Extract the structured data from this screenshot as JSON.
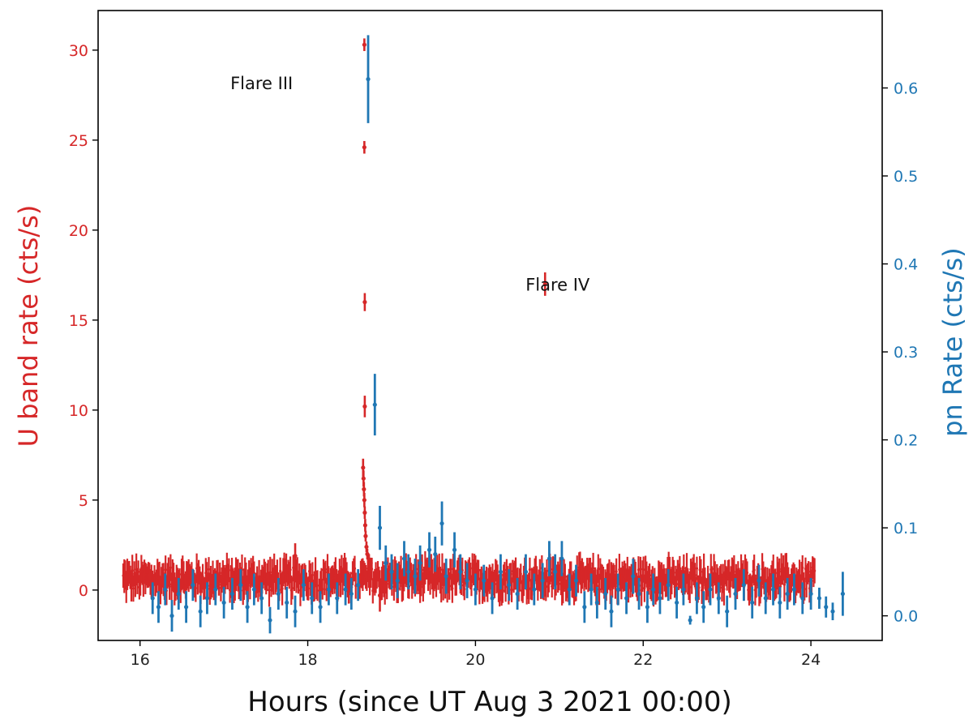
{
  "chart_data": {
    "type": "scatter",
    "title": "",
    "xlabel": "Hours (since UT Aug 3 2021 00:00)",
    "ylabel_left": "U band rate (cts/s)",
    "ylabel_right": "pn Rate (cts/s)",
    "xlim": [
      15.5,
      24.85
    ],
    "ylim_left": [
      -2.8,
      32.2
    ],
    "ylim_right": [
      -0.028,
      0.688
    ],
    "xticks": [
      16,
      18,
      20,
      22,
      24
    ],
    "yticks_left": [
      0,
      5,
      10,
      15,
      20,
      25,
      30
    ],
    "yticks_right": [
      0.0,
      0.1,
      0.2,
      0.3,
      0.4,
      0.5,
      0.6
    ],
    "grid": false,
    "colors": {
      "u_band": "#d62728",
      "pn": "#1f77b4"
    },
    "annotations": [
      {
        "text": "Flare III",
        "x": 17.45,
        "y_left": 28.2
      },
      {
        "text": "Flare IV",
        "x": 20.98,
        "y_left": 17.0
      }
    ],
    "series": [
      {
        "name": "",
        "axis": "left",
        "color": "#d62728",
        "dense_background": {
          "x_start": 15.8,
          "x_end": 24.05,
          "y_mean": 0.6,
          "y_scatter": 0.65,
          "err": 0.75,
          "step": 0.012,
          "gaps": [
            [
              18.12,
              18.14
            ],
            [
              18.58,
              18.62
            ]
          ]
        },
        "points": [
          {
            "x": 18.66,
            "y": 6.8,
            "err": 0.5
          },
          {
            "x": 18.665,
            "y": 6.2,
            "err": 0.45
          },
          {
            "x": 18.67,
            "y": 5.6,
            "err": 0.4
          },
          {
            "x": 18.675,
            "y": 5.0,
            "err": 0.4
          },
          {
            "x": 18.68,
            "y": 4.3,
            "err": 0.35
          },
          {
            "x": 18.685,
            "y": 3.6,
            "err": 0.35
          },
          {
            "x": 18.69,
            "y": 3.0,
            "err": 0.3
          },
          {
            "x": 18.7,
            "y": 2.4,
            "err": 0.3
          },
          {
            "x": 18.71,
            "y": 2.0,
            "err": 0.3
          },
          {
            "x": 18.73,
            "y": 1.7,
            "err": 0.3
          },
          {
            "x": 18.75,
            "y": 1.5,
            "err": 0.3
          },
          {
            "x": 18.68,
            "y": 10.2,
            "err": 0.6
          },
          {
            "x": 18.68,
            "y": 16.0,
            "err": 0.5
          },
          {
            "x": 18.675,
            "y": 24.6,
            "err": 0.35
          },
          {
            "x": 18.675,
            "y": 30.3,
            "err": 0.35
          },
          {
            "x": 20.83,
            "y": 17.0,
            "err": 0.65
          },
          {
            "x": 18.86,
            "y": -0.3,
            "err": 0.9
          },
          {
            "x": 17.85,
            "y": 1.9,
            "err": 0.7
          }
        ]
      },
      {
        "name": "",
        "axis": "right",
        "color": "#1f77b4",
        "points": [
          {
            "x": 16.15,
            "y": 0.02,
            "err": 0.018
          },
          {
            "x": 16.22,
            "y": 0.01,
            "err": 0.018
          },
          {
            "x": 16.3,
            "y": 0.03,
            "err": 0.018
          },
          {
            "x": 16.38,
            "y": 0.0,
            "err": 0.018
          },
          {
            "x": 16.46,
            "y": 0.025,
            "err": 0.018
          },
          {
            "x": 16.55,
            "y": 0.01,
            "err": 0.018
          },
          {
            "x": 16.63,
            "y": 0.035,
            "err": 0.018
          },
          {
            "x": 16.72,
            "y": 0.005,
            "err": 0.018
          },
          {
            "x": 16.8,
            "y": 0.02,
            "err": 0.018
          },
          {
            "x": 16.9,
            "y": 0.03,
            "err": 0.018
          },
          {
            "x": 17.0,
            "y": 0.015,
            "err": 0.018
          },
          {
            "x": 17.1,
            "y": 0.025,
            "err": 0.018
          },
          {
            "x": 17.2,
            "y": 0.035,
            "err": 0.018
          },
          {
            "x": 17.28,
            "y": 0.01,
            "err": 0.018
          },
          {
            "x": 17.36,
            "y": 0.03,
            "err": 0.018
          },
          {
            "x": 17.45,
            "y": 0.02,
            "err": 0.018
          },
          {
            "x": 17.55,
            "y": -0.005,
            "err": 0.015
          },
          {
            "x": 17.65,
            "y": 0.025,
            "err": 0.018
          },
          {
            "x": 17.75,
            "y": 0.015,
            "err": 0.018
          },
          {
            "x": 17.85,
            "y": 0.005,
            "err": 0.018
          },
          {
            "x": 17.95,
            "y": 0.035,
            "err": 0.018
          },
          {
            "x": 18.05,
            "y": 0.02,
            "err": 0.018
          },
          {
            "x": 18.15,
            "y": 0.01,
            "err": 0.018
          },
          {
            "x": 18.25,
            "y": 0.03,
            "err": 0.018
          },
          {
            "x": 18.35,
            "y": 0.02,
            "err": 0.018
          },
          {
            "x": 18.45,
            "y": 0.03,
            "err": 0.018
          },
          {
            "x": 18.52,
            "y": 0.025,
            "err": 0.018
          },
          {
            "x": 18.6,
            "y": 0.035,
            "err": 0.018
          },
          {
            "x": 18.72,
            "y": 0.61,
            "err": 0.05
          },
          {
            "x": 18.8,
            "y": 0.24,
            "err": 0.035
          },
          {
            "x": 18.86,
            "y": 0.1,
            "err": 0.025
          },
          {
            "x": 18.93,
            "y": 0.06,
            "err": 0.02
          },
          {
            "x": 19.0,
            "y": 0.05,
            "err": 0.02
          },
          {
            "x": 19.07,
            "y": 0.04,
            "err": 0.02
          },
          {
            "x": 19.15,
            "y": 0.065,
            "err": 0.02
          },
          {
            "x": 19.2,
            "y": 0.05,
            "err": 0.02
          },
          {
            "x": 19.28,
            "y": 0.045,
            "err": 0.02
          },
          {
            "x": 19.34,
            "y": 0.06,
            "err": 0.02
          },
          {
            "x": 19.45,
            "y": 0.075,
            "err": 0.02
          },
          {
            "x": 19.52,
            "y": 0.07,
            "err": 0.02
          },
          {
            "x": 19.6,
            "y": 0.105,
            "err": 0.025
          },
          {
            "x": 19.65,
            "y": 0.045,
            "err": 0.02
          },
          {
            "x": 19.75,
            "y": 0.075,
            "err": 0.02
          },
          {
            "x": 19.82,
            "y": 0.05,
            "err": 0.02
          },
          {
            "x": 19.9,
            "y": 0.04,
            "err": 0.02
          },
          {
            "x": 20.0,
            "y": 0.03,
            "err": 0.018
          },
          {
            "x": 20.1,
            "y": 0.04,
            "err": 0.018
          },
          {
            "x": 20.2,
            "y": 0.02,
            "err": 0.018
          },
          {
            "x": 20.3,
            "y": 0.05,
            "err": 0.02
          },
          {
            "x": 20.4,
            "y": 0.035,
            "err": 0.018
          },
          {
            "x": 20.5,
            "y": 0.025,
            "err": 0.018
          },
          {
            "x": 20.6,
            "y": 0.05,
            "err": 0.02
          },
          {
            "x": 20.7,
            "y": 0.03,
            "err": 0.018
          },
          {
            "x": 20.8,
            "y": 0.04,
            "err": 0.02
          },
          {
            "x": 20.88,
            "y": 0.065,
            "err": 0.02
          },
          {
            "x": 20.95,
            "y": 0.05,
            "err": 0.02
          },
          {
            "x": 21.03,
            "y": 0.065,
            "err": 0.02
          },
          {
            "x": 21.12,
            "y": 0.03,
            "err": 0.018
          },
          {
            "x": 21.2,
            "y": 0.04,
            "err": 0.018
          },
          {
            "x": 21.3,
            "y": 0.01,
            "err": 0.018
          },
          {
            "x": 21.38,
            "y": 0.03,
            "err": 0.018
          },
          {
            "x": 21.45,
            "y": 0.015,
            "err": 0.018
          },
          {
            "x": 21.55,
            "y": 0.025,
            "err": 0.018
          },
          {
            "x": 21.62,
            "y": 0.005,
            "err": 0.018
          },
          {
            "x": 21.7,
            "y": 0.03,
            "err": 0.018
          },
          {
            "x": 21.8,
            "y": 0.02,
            "err": 0.018
          },
          {
            "x": 21.88,
            "y": 0.045,
            "err": 0.02
          },
          {
            "x": 21.95,
            "y": 0.025,
            "err": 0.018
          },
          {
            "x": 22.05,
            "y": 0.01,
            "err": 0.018
          },
          {
            "x": 22.12,
            "y": 0.03,
            "err": 0.018
          },
          {
            "x": 22.2,
            "y": 0.02,
            "err": 0.018
          },
          {
            "x": 22.3,
            "y": 0.035,
            "err": 0.018
          },
          {
            "x": 22.4,
            "y": 0.015,
            "err": 0.018
          },
          {
            "x": 22.48,
            "y": 0.03,
            "err": 0.018
          },
          {
            "x": 22.56,
            "y": -0.005,
            "err": 0.005
          },
          {
            "x": 22.64,
            "y": 0.02,
            "err": 0.018
          },
          {
            "x": 22.72,
            "y": 0.01,
            "err": 0.018
          },
          {
            "x": 22.8,
            "y": 0.03,
            "err": 0.018
          },
          {
            "x": 22.9,
            "y": 0.02,
            "err": 0.018
          },
          {
            "x": 23.0,
            "y": 0.005,
            "err": 0.018
          },
          {
            "x": 23.1,
            "y": 0.025,
            "err": 0.018
          },
          {
            "x": 23.2,
            "y": 0.035,
            "err": 0.018
          },
          {
            "x": 23.3,
            "y": 0.015,
            "err": 0.018
          },
          {
            "x": 23.38,
            "y": 0.04,
            "err": 0.018
          },
          {
            "x": 23.46,
            "y": 0.02,
            "err": 0.018
          },
          {
            "x": 23.55,
            "y": 0.03,
            "err": 0.018
          },
          {
            "x": 23.63,
            "y": 0.015,
            "err": 0.018
          },
          {
            "x": 23.72,
            "y": 0.025,
            "err": 0.018
          },
          {
            "x": 23.8,
            "y": 0.03,
            "err": 0.018
          },
          {
            "x": 23.9,
            "y": 0.02,
            "err": 0.018
          },
          {
            "x": 24.0,
            "y": 0.025,
            "err": 0.018
          },
          {
            "x": 24.1,
            "y": 0.02,
            "err": 0.012
          },
          {
            "x": 24.18,
            "y": 0.01,
            "err": 0.012
          },
          {
            "x": 24.26,
            "y": 0.005,
            "err": 0.01
          },
          {
            "x": 24.38,
            "y": 0.025,
            "err": 0.025
          }
        ]
      }
    ]
  }
}
